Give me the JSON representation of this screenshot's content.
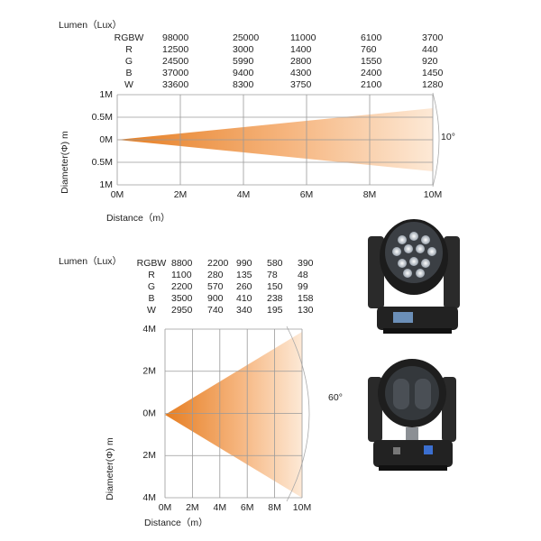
{
  "diagrams": [
    {
      "lumen_label": "Lumen（Lux）",
      "table": {
        "rows": [
          [
            "RGBW",
            "98000",
            "25000",
            "11000",
            "6100",
            "3700"
          ],
          [
            "R",
            "12500",
            "3000",
            "1400",
            "760",
            "440"
          ],
          [
            "G",
            "24500",
            "5990",
            "2800",
            "1550",
            "920"
          ],
          [
            "B",
            "37000",
            "9400",
            "4300",
            "2400",
            "1450"
          ],
          [
            "W",
            "33600",
            "8300",
            "3750",
            "2100",
            "1280"
          ]
        ]
      },
      "y_labels": [
        "1M",
        "0.5M",
        "0M",
        "0.5M",
        "1M"
      ],
      "x_labels": [
        "0M",
        "2M",
        "4M",
        "6M",
        "8M",
        "10M"
      ],
      "y_axis_title": "Diameter(Φ) m",
      "x_axis_title": "Distance（m）",
      "beam_angle": "10°"
    },
    {
      "lumen_label": "Lumen（Lux）",
      "table": {
        "rows": [
          [
            "RGBW",
            "8800",
            "2200",
            "990",
            "580",
            "390"
          ],
          [
            "R",
            "1100",
            "280",
            "135",
            "78",
            "48"
          ],
          [
            "G",
            "2200",
            "570",
            "260",
            "150",
            "99"
          ],
          [
            "B",
            "3500",
            "900",
            "410",
            "238",
            "158"
          ],
          [
            "W",
            "2950",
            "740",
            "340",
            "195",
            "130"
          ]
        ]
      },
      "y_labels": [
        "4M",
        "2M",
        "0M",
        "2M",
        "4M"
      ],
      "x_labels": [
        "0M",
        "2M",
        "4M",
        "6M",
        "8M",
        "10M"
      ],
      "y_axis_title": "Diameter(Φ) m",
      "x_axis_title": "Distance（m）",
      "beam_angle": "60°"
    }
  ]
}
